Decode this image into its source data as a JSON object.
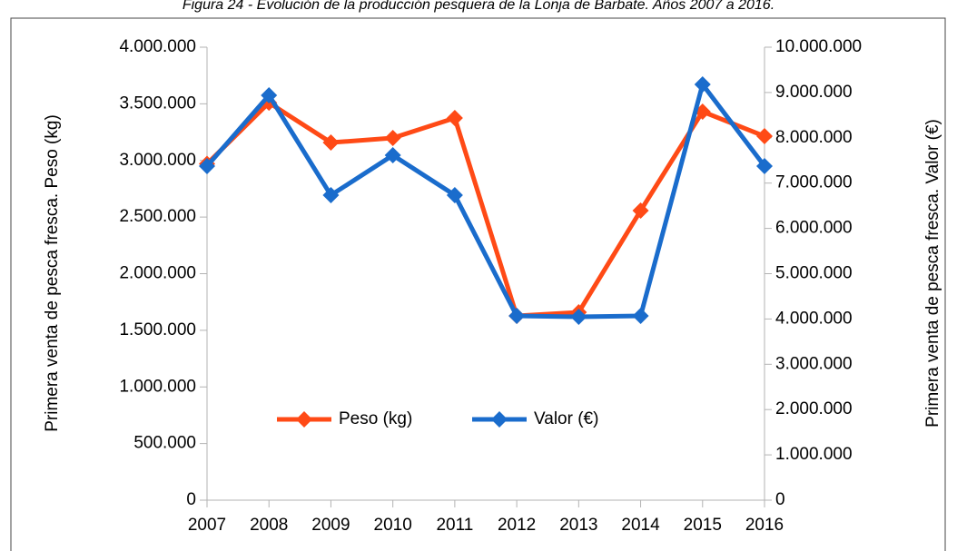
{
  "chart_data": {
    "type": "line",
    "title": "Figura 24 - Evolución de la producción pesquera de la Lonja de Barbate. Años 2007 a 2016.",
    "categories": [
      "2007",
      "2008",
      "2009",
      "2010",
      "2011",
      "2012",
      "2013",
      "2014",
      "2015",
      "2016"
    ],
    "ylabel": "Primera venta de pesca fresca. Peso (kg)",
    "y2label": "Primera venta de pesca fresca. Valor (€)",
    "ylim": [
      0,
      4000000
    ],
    "yticks": [
      0,
      {
        "value": 500000,
        "label": "500.000"
      },
      {
        "value": 1000000,
        "label": "1.000.000"
      },
      {
        "value": 1500000,
        "label": "1.500.000"
      },
      {
        "value": 2000000,
        "label": "2.000.000"
      },
      {
        "value": 2500000,
        "label": "2.500.000"
      },
      {
        "value": 3000000,
        "label": "3.000.000"
      },
      {
        "value": 3500000,
        "label": "3.500.000"
      },
      {
        "value": 4000000,
        "label": "4.000.000"
      }
    ],
    "y2lim": [
      0,
      10000000
    ],
    "y2ticks": [
      0,
      {
        "value": 1000000,
        "label": "1.000.000"
      },
      {
        "value": 2000000,
        "label": "2.000.000"
      },
      {
        "value": 3000000,
        "label": "3.000.000"
      },
      {
        "value": 4000000,
        "label": "4.000.000"
      },
      {
        "value": 5000000,
        "label": "5.000.000"
      },
      {
        "value": 6000000,
        "label": "6.000.000"
      },
      {
        "value": 7000000,
        "label": "7.000.000"
      },
      {
        "value": 8000000,
        "label": "8.000.000"
      },
      {
        "value": 9000000,
        "label": "9.000.000"
      },
      {
        "value": 10000000,
        "label": "10.000.000"
      }
    ],
    "series": [
      {
        "name": "Peso (kg)",
        "color": "#ff4a16",
        "values": [
          2970000,
          3510000,
          3158000,
          3198000,
          3375000,
          1627000,
          1659000,
          2557000,
          3431000,
          3214000
        ]
      },
      {
        "name": "Valor (€)",
        "color": "#1a6ccc",
        "axis": "y2",
        "values": [
          7375000,
          8938000,
          6733000,
          7615000,
          6733000,
          4068000,
          4048000,
          4068000,
          9178000,
          7375000
        ]
      }
    ],
    "grid": false
  }
}
